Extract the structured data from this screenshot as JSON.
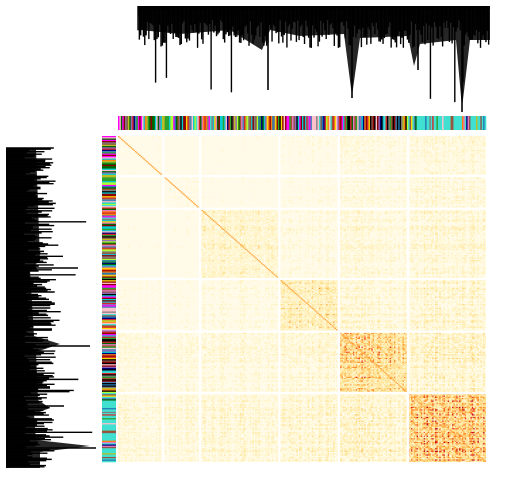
{
  "chart_data": {
    "type": "heatmap",
    "title": "",
    "xlabel": "",
    "ylabel": "",
    "n_genes": 260,
    "n_blocks": 6,
    "block_sizes": [
      32,
      26,
      56,
      42,
      49,
      55
    ],
    "gridlines": true,
    "dendrogram_top": true,
    "dendrogram_left": true,
    "module_color_bars": [
      "top",
      "left"
    ],
    "module_palette": [
      "#e377c2",
      "#1f77b4",
      "#2ca02c",
      "#d62728",
      "#9467bd",
      "#8c564b",
      "#17becf",
      "#bcbd22",
      "#ff7f0e",
      "#7f7f7f",
      "#000080",
      "#ff00ff",
      "#00ced1",
      "#006400",
      "#8b0000",
      "#ffd700",
      "#40e0d0",
      "#a0522d",
      "#000000",
      "#ffc0cb",
      "#4682b4",
      "#adff2f"
    ],
    "colormap": [
      "#fffbe8",
      "#fff3c4",
      "#ffe08a",
      "#ffb347",
      "#ff7a1a",
      "#e8321e",
      "#b80018"
    ],
    "cluster_blocks": [
      {
        "block": 0,
        "intensity": 0.1
      },
      {
        "block": 1,
        "intensity": 0.12
      },
      {
        "block": 2,
        "intensity": 0.3
      },
      {
        "block": 3,
        "intensity": 0.45
      },
      {
        "block": 4,
        "intensity": 0.72
      },
      {
        "block": 5,
        "intensity": 0.9
      }
    ],
    "dendrogram_merge_heights": [
      0.12,
      0.25,
      0.45,
      0.62,
      0.8,
      1.0
    ]
  }
}
